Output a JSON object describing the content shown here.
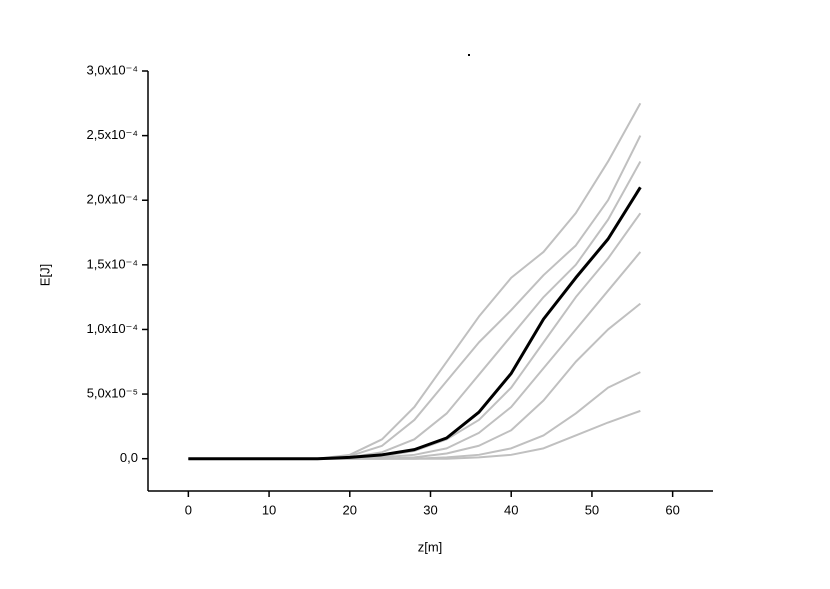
{
  "chart_data": {
    "type": "line",
    "xlabel": "z[m]",
    "ylabel": "E[J]",
    "x": [
      0,
      10,
      16,
      20,
      24,
      28,
      32,
      36,
      40,
      44,
      48,
      52,
      56
    ],
    "series": [
      {
        "color": "#c0c0c0",
        "values": [
          0,
          0,
          0,
          3e-06,
          1.5e-05,
          4e-05,
          7.5e-05,
          0.00011,
          0.00014,
          0.00016,
          0.00019,
          0.00023,
          0.000275
        ]
      },
      {
        "color": "#c0c0c0",
        "values": [
          0,
          0,
          0,
          2e-06,
          1e-05,
          3e-05,
          6e-05,
          9e-05,
          0.000115,
          0.000142,
          0.000165,
          0.0002,
          0.00025
        ]
      },
      {
        "color": "#c0c0c0",
        "values": [
          0,
          0,
          0,
          1e-06,
          5e-06,
          1.5e-05,
          3.5e-05,
          6.5e-05,
          9.5e-05,
          0.000125,
          0.00015,
          0.000185,
          0.00023
        ]
      },
      {
        "color": "#c0c0c0",
        "values": [
          0,
          0,
          0,
          0,
          2e-06,
          6e-06,
          1.5e-05,
          3e-05,
          5.5e-05,
          9e-05,
          0.000125,
          0.000155,
          0.00019
        ]
      },
      {
        "color": "#c0c0c0",
        "values": [
          0,
          0,
          0,
          0,
          1e-06,
          3e-06,
          8e-06,
          2e-05,
          4e-05,
          7e-05,
          0.0001,
          0.00013,
          0.00016
        ]
      },
      {
        "color": "#c0c0c0",
        "values": [
          0,
          0,
          0,
          0,
          0,
          1e-06,
          4e-06,
          1e-05,
          2.2e-05,
          4.5e-05,
          7.5e-05,
          0.0001,
          0.00012
        ]
      },
      {
        "color": "#c0c0c0",
        "values": [
          0,
          0,
          0,
          0,
          0,
          0,
          1e-06,
          3e-06,
          8e-06,
          1.8e-05,
          3.5e-05,
          5.5e-05,
          6.7e-05
        ]
      },
      {
        "color": "#c0c0c0",
        "values": [
          0,
          0,
          0,
          0,
          0,
          0,
          0,
          1e-06,
          3e-06,
          8e-06,
          1.8e-05,
          2.8e-05,
          3.7e-05
        ]
      },
      {
        "color": "#000000",
        "values": [
          0,
          0,
          0,
          1e-06,
          3e-06,
          7e-06,
          1.6e-05,
          3.6e-05,
          6.6e-05,
          0.000108,
          0.00014,
          0.00017,
          0.00021
        ]
      }
    ],
    "xlim": [
      -5,
      65
    ],
    "xticks": [
      0,
      10,
      20,
      30,
      40,
      50,
      60
    ],
    "ylim": [
      -2.5e-05,
      0.0003
    ],
    "yticks": [
      {
        "value": 0,
        "label": "0,0"
      },
      {
        "value": 5e-05,
        "label": "5,0x10⁻⁵"
      },
      {
        "value": 0.0001,
        "label": "1,0x10⁻⁴"
      },
      {
        "value": 0.00015,
        "label": "1,5x10⁻⁴"
      },
      {
        "value": 0.0002,
        "label": "2,0x10⁻⁴"
      },
      {
        "value": 0.00025,
        "label": "2,5x10⁻⁴"
      },
      {
        "value": 0.0003,
        "label": "3,0x10⁻⁴"
      }
    ]
  }
}
